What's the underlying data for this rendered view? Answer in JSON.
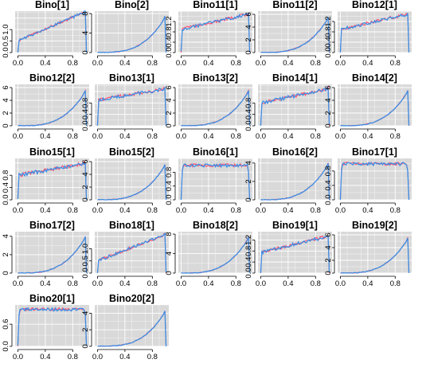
{
  "chart_data": {
    "type": "line",
    "layout_cols": 5,
    "grid": true,
    "panel_background": "#d9d9d9",
    "colors": {
      "red": "#ff4d6d",
      "blue": "#3b8fe6"
    },
    "x_ticks": [
      0.0,
      0.4,
      0.8
    ],
    "x_tick_labels": [
      "0.0",
      "0.4",
      "0.8"
    ],
    "panels": [
      {
        "title": "Bino[1]",
        "kind": "linear",
        "ylim": [
          0,
          1.8
        ],
        "y_ticks": [
          0.0,
          0.5,
          1.0
        ],
        "y_tick_labels": [
          "0.0",
          "0.5",
          "1.0"
        ],
        "start": 0.5,
        "end": 1.8
      },
      {
        "title": "Bino[2]",
        "kind": "skew",
        "ylim": [
          0,
          8.5
        ],
        "y_ticks": [
          0,
          4,
          8
        ],
        "y_tick_labels": [
          "0",
          "4",
          "8"
        ],
        "peak": 8.0
      },
      {
        "title": "Bino11[1]",
        "kind": "linear",
        "ylim": [
          0,
          1.6
        ],
        "y_ticks": [
          0.0,
          0.4,
          0.8,
          1.2
        ],
        "y_tick_labels": [
          "0.0",
          "0.4",
          "0.8",
          "1.2"
        ],
        "start": 0.9,
        "end": 1.5
      },
      {
        "title": "Bino11[2]",
        "kind": "skew",
        "ylim": [
          0,
          6.5
        ],
        "y_ticks": [
          0,
          2,
          4,
          6
        ],
        "y_tick_labels": [
          "0",
          "2",
          "4",
          "6"
        ],
        "peak": 6.0
      },
      {
        "title": "Bino12[1]",
        "kind": "linear",
        "ylim": [
          0,
          1.6
        ],
        "y_ticks": [
          0.0,
          0.4,
          0.8,
          1.2
        ],
        "y_tick_labels": [
          "0.0",
          "0.4",
          "0.8",
          "1.2"
        ],
        "start": 0.9,
        "end": 1.5
      },
      {
        "title": "Bino12[2]",
        "kind": "skew",
        "ylim": [
          0,
          6.5
        ],
        "y_ticks": [
          0,
          2,
          4,
          6
        ],
        "y_tick_labels": [
          "0",
          "2",
          "4",
          "6"
        ],
        "peak": 6.0
      },
      {
        "title": "Bino13[1]",
        "kind": "linear",
        "ylim": [
          0,
          1.45
        ],
        "y_ticks": [
          0.0,
          0.4,
          0.8
        ],
        "y_tick_labels": [
          "0.0",
          "0.4",
          "0.8"
        ],
        "start": 0.9,
        "end": 1.3
      },
      {
        "title": "Bino13[2]",
        "kind": "skew",
        "ylim": [
          0,
          6.5
        ],
        "y_ticks": [
          0,
          2,
          4,
          6
        ],
        "y_tick_labels": [
          "0",
          "2",
          "4",
          "6"
        ],
        "peak": 6.0
      },
      {
        "title": "Bino14[1]",
        "kind": "linear",
        "ylim": [
          0,
          1.45
        ],
        "y_ticks": [
          0.0,
          0.4,
          0.8
        ],
        "y_tick_labels": [
          "0.0",
          "0.4",
          "0.8"
        ],
        "start": 0.8,
        "end": 1.3
      },
      {
        "title": "Bino14[2]",
        "kind": "skew",
        "ylim": [
          0,
          6.5
        ],
        "y_ticks": [
          0,
          2,
          4,
          6
        ],
        "y_tick_labels": [
          "0",
          "2",
          "4",
          "6"
        ],
        "peak": 6.0
      },
      {
        "title": "Bino15[1]",
        "kind": "linear",
        "ylim": [
          0,
          1.35
        ],
        "y_ticks": [
          0.0,
          0.4,
          0.8
        ],
        "y_tick_labels": [
          "0.0",
          "0.4",
          "0.8"
        ],
        "start": 0.8,
        "end": 1.2
      },
      {
        "title": "Bino15[2]",
        "kind": "skew",
        "ylim": [
          0,
          6.5
        ],
        "y_ticks": [
          0,
          2,
          4,
          6
        ],
        "y_tick_labels": [
          "0",
          "2",
          "4",
          "6"
        ],
        "peak": 6.0
      },
      {
        "title": "Bino16[1]",
        "kind": "flat",
        "ylim": [
          0,
          1.2
        ],
        "y_ticks": [
          0.0,
          0.4,
          0.8
        ],
        "y_tick_labels": [
          "0.0",
          "0.4",
          "0.8"
        ],
        "level": 1.0
      },
      {
        "title": "Bino16[2]",
        "kind": "skew",
        "ylim": [
          0,
          4.5
        ],
        "y_ticks": [
          0,
          2,
          4
        ],
        "y_tick_labels": [
          "0",
          "2",
          "4"
        ],
        "peak": 4.3
      },
      {
        "title": "Bino17[1]",
        "kind": "flat",
        "ylim": [
          0,
          1.15
        ],
        "y_ticks": [
          0.0,
          0.4,
          0.8
        ],
        "y_tick_labels": [
          "0.0",
          "0.4",
          "0.8"
        ],
        "level": 1.0
      },
      {
        "title": "Bino17[2]",
        "kind": "skew",
        "ylim": [
          0,
          4.5
        ],
        "y_ticks": [
          0,
          2,
          4
        ],
        "y_tick_labels": [
          "0",
          "2",
          "4"
        ],
        "peak": 4.3
      },
      {
        "title": "Bino18[1]",
        "kind": "linear",
        "ylim": [
          0,
          1.7
        ],
        "y_ticks": [
          0.0,
          0.5,
          1.0
        ],
        "y_tick_labels": [
          "0.0",
          "0.5",
          "1.0"
        ],
        "start": 0.5,
        "end": 1.6
      },
      {
        "title": "Bino18[2]",
        "kind": "skew",
        "ylim": [
          0,
          8.5
        ],
        "y_ticks": [
          0,
          4,
          8
        ],
        "y_tick_labels": [
          "0",
          "4",
          "8"
        ],
        "peak": 8.0
      },
      {
        "title": "Bino19[1]",
        "kind": "linear",
        "ylim": [
          0,
          1.5
        ],
        "y_ticks": [
          0.0,
          0.4,
          0.8,
          1.2
        ],
        "y_tick_labels": [
          "0.0",
          "0.4",
          "0.8",
          "1.2"
        ],
        "start": 0.75,
        "end": 1.35
      },
      {
        "title": "Bino19[2]",
        "kind": "skew",
        "ylim": [
          0,
          6.5
        ],
        "y_ticks": [
          0,
          2,
          4,
          6
        ],
        "y_tick_labels": [
          "0",
          "2",
          "4",
          "6"
        ],
        "peak": 6.0
      },
      {
        "title": "Bino20[1]",
        "kind": "flat",
        "ylim": [
          0,
          1.12
        ],
        "y_ticks": [
          0.0,
          0.6
        ],
        "y_tick_labels": [
          "0.0",
          "0.6"
        ],
        "level": 1.0
      },
      {
        "title": "Bino20[2]",
        "kind": "skew",
        "ylim": [
          0,
          5.0
        ],
        "y_ticks": [
          0,
          2,
          4
        ],
        "y_tick_labels": [
          "0",
          "2",
          "4"
        ],
        "peak": 4.6
      }
    ]
  }
}
